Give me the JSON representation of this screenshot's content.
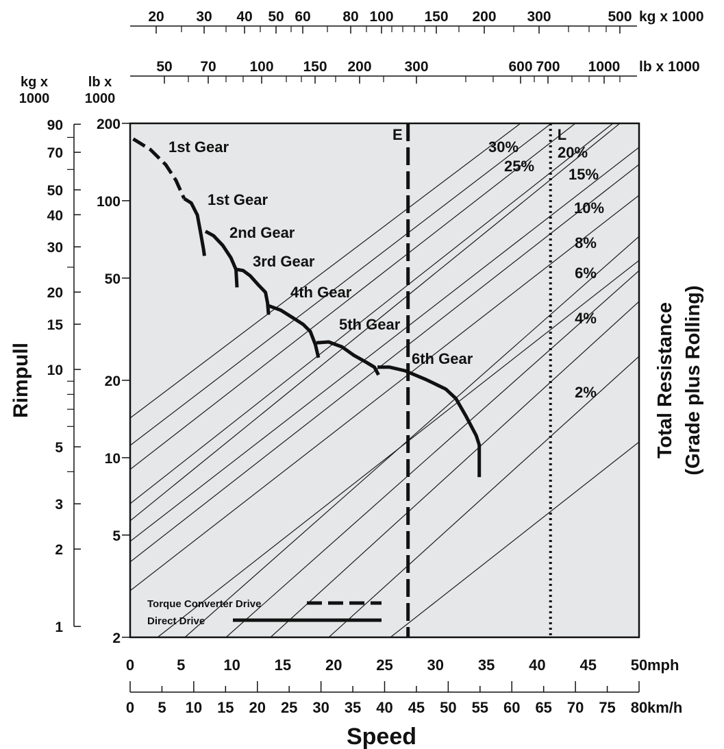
{
  "chart_data": {
    "type": "line",
    "title": "",
    "xlabel": "Speed",
    "ylabel_left": "Rimpull",
    "ylabel_right": [
      "Total Resistance",
      "(Grade plus Rolling)"
    ],
    "x_axis_mph": {
      "range": [
        0,
        50
      ],
      "unit": "mph",
      "ticks": [
        0,
        5,
        10,
        15,
        20,
        25,
        30,
        35,
        40,
        45,
        50
      ]
    },
    "x_axis_kmh": {
      "range": [
        0,
        80
      ],
      "unit": "km/h",
      "ticks": [
        0,
        5,
        10,
        15,
        20,
        25,
        30,
        35,
        40,
        45,
        50,
        55,
        60,
        65,
        70,
        75,
        80
      ]
    },
    "y_axis_lb": {
      "header": [
        "lb x",
        "1000"
      ],
      "scale": "log",
      "range": [
        2,
        200
      ],
      "ticks": [
        2,
        5,
        10,
        20,
        50,
        100,
        200
      ]
    },
    "y_axis_kg": {
      "header": [
        "kg x",
        "1000"
      ],
      "scale": "log",
      "labels": [
        1,
        2,
        3,
        5,
        10,
        15,
        20,
        30,
        40,
        50,
        70,
        90
      ]
    },
    "weight_scale_kg": {
      "unit": "kg x 1000",
      "labels": [
        20,
        30,
        40,
        50,
        60,
        80,
        100,
        150,
        200,
        300,
        500
      ]
    },
    "weight_scale_lb": {
      "unit": "lb x 1000",
      "labels": [
        50,
        70,
        100,
        150,
        200,
        300,
        600,
        700,
        1000
      ]
    },
    "grade_lines": [
      "2%",
      "4%",
      "6%",
      "8%",
      "10%",
      "15%",
      "20%",
      "25%",
      "30%"
    ],
    "markers": [
      {
        "label": "E",
        "x_mph": 27.3,
        "style": "dashed"
      },
      {
        "label": "L",
        "x_mph": 41.3,
        "style": "dotted"
      }
    ],
    "series": [
      {
        "name": "1st Gear",
        "drive": "Torque Converter Drive",
        "points": [
          [
            0.3,
            174
          ],
          [
            2.0,
            158
          ],
          [
            3.5,
            138
          ],
          [
            4.5,
            120
          ],
          [
            5.3,
            102
          ]
        ]
      },
      {
        "name": "1st Gear",
        "drive": "Direct Drive",
        "points": [
          [
            5.3,
            102
          ],
          [
            6.0,
            98
          ],
          [
            6.6,
            88
          ],
          [
            6.9,
            76
          ],
          [
            7.2,
            65
          ],
          [
            7.3,
            61
          ]
        ]
      },
      {
        "name": "2nd Gear",
        "drive": "Direct Drive",
        "points": [
          [
            7.4,
            76
          ],
          [
            8.2,
            73
          ],
          [
            9.1,
            67
          ],
          [
            9.9,
            60
          ],
          [
            10.4,
            54
          ],
          [
            10.5,
            46
          ]
        ]
      },
      {
        "name": "3rd Gear",
        "drive": "Direct Drive",
        "points": [
          [
            10.5,
            54
          ],
          [
            11.1,
            53.5
          ],
          [
            11.8,
            51
          ],
          [
            12.6,
            47
          ],
          [
            13.3,
            44
          ],
          [
            13.5,
            40
          ],
          [
            13.6,
            36
          ]
        ]
      },
      {
        "name": "4th Gear",
        "drive": "Direct Drive",
        "points": [
          [
            13.6,
            39
          ],
          [
            14.8,
            37.5
          ],
          [
            16.0,
            35
          ],
          [
            17.0,
            33
          ],
          [
            17.7,
            31
          ],
          [
            18.2,
            27.5
          ],
          [
            18.5,
            24.5
          ]
        ]
      },
      {
        "name": "5th Gear",
        "drive": "Direct Drive",
        "points": [
          [
            18.3,
            28
          ],
          [
            19.5,
            28.2
          ],
          [
            20.8,
            27
          ],
          [
            22.0,
            25
          ],
          [
            23.2,
            23.5
          ],
          [
            24.0,
            22.5
          ],
          [
            24.4,
            21
          ]
        ]
      },
      {
        "name": "6th Gear",
        "drive": "Direct Drive",
        "points": [
          [
            24.3,
            22.5
          ],
          [
            25.5,
            22.5
          ],
          [
            27.0,
            21.8
          ],
          [
            29.0,
            20.2
          ],
          [
            31.0,
            18.5
          ],
          [
            32.0,
            17
          ],
          [
            33.0,
            14.5
          ],
          [
            34.0,
            12.2
          ],
          [
            34.3,
            11.2
          ],
          [
            34.3,
            8.4
          ]
        ]
      }
    ],
    "legend": [
      {
        "label": "Torque Converter Drive",
        "style": "dashed"
      },
      {
        "label": "Direct Drive",
        "style": "solid"
      }
    ],
    "grid": false,
    "legend_position": "bottom-left"
  }
}
